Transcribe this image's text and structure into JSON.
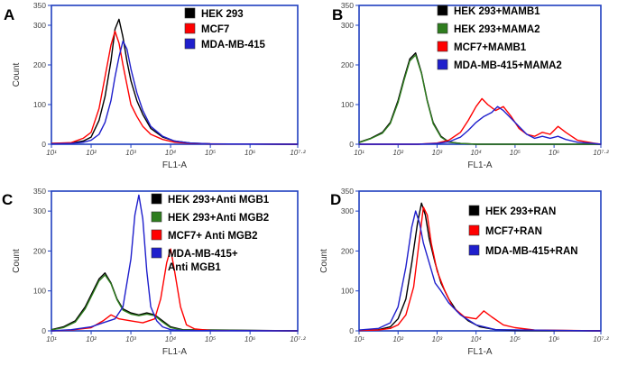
{
  "chart_data": [
    {
      "panel": "A",
      "type": "line",
      "xlabel": "FL1-A",
      "ylabel": "Count",
      "xscale": "log",
      "xlim": [
        1,
        7.2
      ],
      "ylim": [
        0,
        350
      ],
      "yticks": [
        0,
        100,
        200,
        300,
        350
      ],
      "xticks": [
        1,
        2,
        3,
        4,
        5,
        6,
        7.2
      ],
      "xtick_labels": [
        "10¹",
        "10²",
        "10³",
        "10⁴",
        "10⁵",
        "10⁶",
        "10⁷·²"
      ],
      "series": [
        {
          "name": "HEK 293",
          "color": "#000000",
          "x": [
            1.0,
            1.5,
            1.8,
            2.0,
            2.2,
            2.35,
            2.5,
            2.6,
            2.7,
            2.8,
            2.9,
            3.0,
            3.15,
            3.3,
            3.5,
            3.8,
            4.1,
            4.5,
            5.0,
            7.2
          ],
          "y": [
            2,
            3,
            8,
            18,
            60,
            120,
            210,
            290,
            315,
            270,
            210,
            160,
            110,
            75,
            40,
            18,
            8,
            3,
            1,
            0
          ]
        },
        {
          "name": "MCF7",
          "color": "#ff0000",
          "x": [
            1.0,
            1.5,
            1.8,
            2.0,
            2.2,
            2.35,
            2.5,
            2.6,
            2.7,
            2.8,
            2.9,
            3.0,
            3.15,
            3.3,
            3.5,
            3.8,
            4.1,
            4.5,
            5.0,
            7.2
          ],
          "y": [
            2,
            4,
            15,
            30,
            90,
            170,
            250,
            285,
            255,
            200,
            150,
            100,
            70,
            45,
            25,
            12,
            5,
            2,
            1,
            0
          ]
        },
        {
          "name": "MDA-MB-415",
          "color": "#1f1fcc",
          "x": [
            1.0,
            1.5,
            1.8,
            2.0,
            2.2,
            2.35,
            2.5,
            2.6,
            2.7,
            2.8,
            2.9,
            3.0,
            3.15,
            3.3,
            3.5,
            3.8,
            4.1,
            4.5,
            5.0,
            7.2
          ],
          "y": [
            1,
            2,
            5,
            10,
            25,
            55,
            110,
            170,
            220,
            260,
            240,
            190,
            130,
            85,
            45,
            20,
            8,
            3,
            1,
            0
          ]
        }
      ]
    },
    {
      "panel": "B",
      "type": "line",
      "xlabel": "FL1-A",
      "ylabel": "",
      "xscale": "log",
      "xlim": [
        1,
        7.2
      ],
      "ylim": [
        0,
        350
      ],
      "yticks": [
        0,
        100,
        200,
        300,
        350
      ],
      "xticks": [
        1,
        2,
        3,
        4,
        5,
        6,
        7.2
      ],
      "xtick_labels": [
        "10¹",
        "10²",
        "10³",
        "10⁴",
        "10⁵",
        "10⁶",
        "10⁷·²"
      ],
      "series": [
        {
          "name": "HEK 293+MAMB1",
          "color": "#000000",
          "x": [
            1.0,
            1.3,
            1.6,
            1.8,
            2.0,
            2.15,
            2.3,
            2.45,
            2.6,
            2.75,
            2.9,
            3.1,
            3.3,
            3.6,
            4.0,
            7.2
          ],
          "y": [
            5,
            15,
            30,
            55,
            110,
            165,
            215,
            230,
            180,
            110,
            55,
            20,
            6,
            2,
            0,
            0
          ]
        },
        {
          "name": "HEK 293+MAMA2",
          "color": "#2e7d1e",
          "x": [
            1.0,
            1.3,
            1.6,
            1.8,
            2.0,
            2.15,
            2.3,
            2.45,
            2.6,
            2.75,
            2.9,
            3.1,
            3.3,
            3.6,
            4.0,
            7.2
          ],
          "y": [
            4,
            14,
            28,
            52,
            105,
            160,
            210,
            225,
            178,
            108,
            52,
            18,
            5,
            2,
            0,
            0
          ]
        },
        {
          "name": "MCF7+MAMB1",
          "color": "#ff0000",
          "x": [
            1.0,
            2.5,
            3.0,
            3.3,
            3.6,
            3.8,
            4.0,
            4.15,
            4.3,
            4.5,
            4.7,
            4.9,
            5.1,
            5.3,
            5.5,
            5.7,
            5.9,
            6.1,
            6.3,
            6.6,
            7.0,
            7.2
          ],
          "y": [
            0,
            0,
            3,
            10,
            30,
            60,
            95,
            115,
            100,
            85,
            95,
            70,
            40,
            25,
            20,
            30,
            25,
            45,
            30,
            10,
            3,
            0
          ]
        },
        {
          "name": "MDA-MB-415+MAMA2",
          "color": "#1f1fcc",
          "x": [
            1.0,
            2.5,
            3.0,
            3.3,
            3.6,
            3.8,
            4.0,
            4.2,
            4.4,
            4.55,
            4.7,
            4.9,
            5.1,
            5.3,
            5.5,
            5.7,
            5.9,
            6.1,
            6.3,
            6.6,
            7.0,
            7.2
          ],
          "y": [
            0,
            0,
            2,
            6,
            18,
            35,
            55,
            70,
            80,
            95,
            85,
            65,
            45,
            25,
            15,
            20,
            15,
            20,
            12,
            5,
            2,
            0
          ]
        }
      ]
    },
    {
      "panel": "C",
      "type": "line",
      "xlabel": "FL1-A",
      "ylabel": "Count",
      "xscale": "log",
      "xlim": [
        1,
        7.2
      ],
      "ylim": [
        0,
        350
      ],
      "yticks": [
        0,
        100,
        200,
        300,
        350
      ],
      "xticks": [
        1,
        2,
        3,
        4,
        5,
        6,
        7.2
      ],
      "xtick_labels": [
        "10¹",
        "10²",
        "10³",
        "10⁴",
        "10⁵",
        "10⁶",
        "10⁷·²"
      ],
      "series": [
        {
          "name": "HEK 293+Anti MGB1",
          "color": "#000000",
          "x": [
            1.0,
            1.3,
            1.6,
            1.85,
            2.05,
            2.2,
            2.35,
            2.5,
            2.65,
            2.8,
            3.0,
            3.2,
            3.4,
            3.6,
            3.8,
            4.0,
            4.3,
            7.2
          ],
          "y": [
            3,
            10,
            25,
            60,
            100,
            130,
            145,
            120,
            80,
            55,
            45,
            40,
            45,
            40,
            25,
            10,
            3,
            0
          ]
        },
        {
          "name": "HEK 293+Anti MGB2",
          "color": "#2e7d1e",
          "x": [
            1.0,
            1.3,
            1.6,
            1.85,
            2.05,
            2.2,
            2.35,
            2.5,
            2.65,
            2.8,
            3.0,
            3.2,
            3.4,
            3.6,
            3.8,
            4.0,
            4.3,
            7.2
          ],
          "y": [
            2,
            8,
            22,
            55,
            95,
            125,
            140,
            118,
            78,
            52,
            42,
            38,
            42,
            38,
            22,
            8,
            2,
            0
          ]
        },
        {
          "name": "MCF7+ Anti MGB2",
          "color": "#ff0000",
          "x": [
            1.0,
            1.5,
            2.0,
            2.3,
            2.5,
            2.7,
            3.0,
            3.3,
            3.6,
            3.75,
            3.9,
            4.0,
            4.1,
            4.25,
            4.4,
            4.6,
            5.0,
            7.2
          ],
          "y": [
            0,
            2,
            8,
            25,
            40,
            30,
            25,
            20,
            30,
            80,
            170,
            205,
            150,
            60,
            15,
            5,
            1,
            0
          ]
        },
        {
          "name": "MDA-MB-415+ Anti MGB1",
          "color": "#1f1fcc",
          "x": [
            1.0,
            1.5,
            2.0,
            2.3,
            2.6,
            2.8,
            3.0,
            3.1,
            3.2,
            3.3,
            3.4,
            3.5,
            3.65,
            3.8,
            4.0,
            4.3,
            7.2
          ],
          "y": [
            0,
            3,
            10,
            20,
            30,
            60,
            180,
            290,
            340,
            280,
            150,
            60,
            25,
            10,
            3,
            1,
            0
          ]
        }
      ]
    },
    {
      "panel": "D",
      "type": "line",
      "xlabel": "FL1-A",
      "ylabel": "Count",
      "xscale": "log",
      "xlim": [
        1,
        7.2
      ],
      "ylim": [
        0,
        350
      ],
      "yticks": [
        0,
        100,
        200,
        300,
        350
      ],
      "xticks": [
        1,
        2,
        3,
        4,
        5,
        6,
        7.2
      ],
      "xtick_labels": [
        "10¹",
        "10²",
        "10³",
        "10⁴",
        "10⁵",
        "10⁶",
        "10⁷·²"
      ],
      "series": [
        {
          "name": "HEK 293+RAN",
          "color": "#000000",
          "x": [
            1.0,
            1.5,
            1.8,
            2.0,
            2.2,
            2.35,
            2.5,
            2.6,
            2.7,
            2.8,
            2.95,
            3.1,
            3.3,
            3.5,
            3.8,
            4.1,
            4.5,
            5.0,
            7.2
          ],
          "y": [
            1,
            3,
            10,
            30,
            80,
            170,
            270,
            320,
            290,
            230,
            170,
            120,
            80,
            50,
            25,
            10,
            3,
            1,
            0
          ]
        },
        {
          "name": "MCF7+RAN",
          "color": "#ff0000",
          "x": [
            1.0,
            1.5,
            1.8,
            2.0,
            2.2,
            2.4,
            2.55,
            2.65,
            2.75,
            2.85,
            3.0,
            3.2,
            3.4,
            3.7,
            4.0,
            4.2,
            4.4,
            4.7,
            5.0,
            5.5,
            7.2
          ],
          "y": [
            1,
            2,
            6,
            15,
            40,
            110,
            230,
            310,
            290,
            220,
            150,
            100,
            60,
            35,
            30,
            50,
            35,
            15,
            8,
            2,
            0
          ]
        },
        {
          "name": "MDA-MB-415+RAN",
          "color": "#1f1fcc",
          "x": [
            1.0,
            1.5,
            1.8,
            2.0,
            2.2,
            2.35,
            2.45,
            2.55,
            2.65,
            2.8,
            2.95,
            3.1,
            3.3,
            3.6,
            4.0,
            4.5,
            7.2
          ],
          "y": [
            2,
            6,
            20,
            60,
            160,
            260,
            300,
            270,
            220,
            170,
            120,
            100,
            70,
            40,
            15,
            3,
            0
          ]
        }
      ]
    }
  ]
}
